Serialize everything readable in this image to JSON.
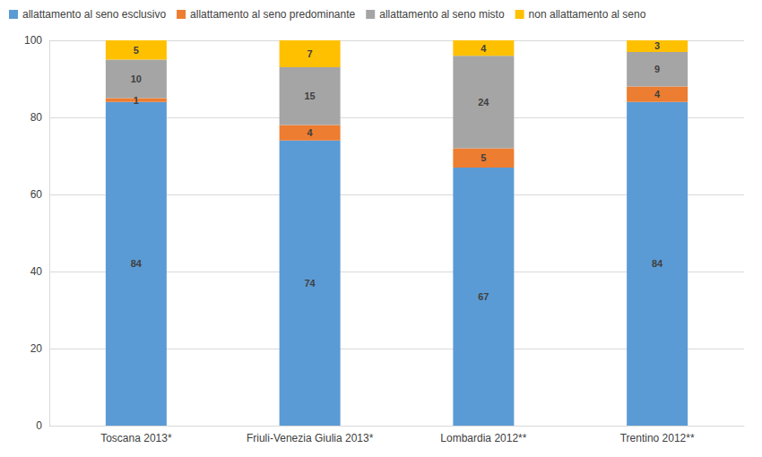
{
  "chart_data": {
    "type": "bar",
    "stacked": true,
    "data_labels": true,
    "grid": true,
    "legend": "top",
    "categories": [
      "Toscana 2013*",
      "Friuli-Venezia Giulia 2013*",
      "Lombardia 2012**",
      "Trentino 2012**"
    ],
    "series": [
      {
        "name": "allattamento al seno esclusivo",
        "color": "#5b9bd5",
        "values": [
          84,
          74,
          67,
          84
        ]
      },
      {
        "name": "allattamento al seno predominante",
        "color": "#ed7d31",
        "values": [
          1,
          4,
          5,
          4
        ]
      },
      {
        "name": "allattamento al seno misto",
        "color": "#a5a5a5",
        "values": [
          10,
          15,
          24,
          9
        ]
      },
      {
        "name": "non allattamento al seno",
        "color": "#ffc000",
        "values": [
          5,
          7,
          4,
          3
        ]
      }
    ],
    "ylim": [
      0,
      100
    ],
    "yticks": [
      0,
      20,
      40,
      60,
      80,
      100
    ]
  }
}
